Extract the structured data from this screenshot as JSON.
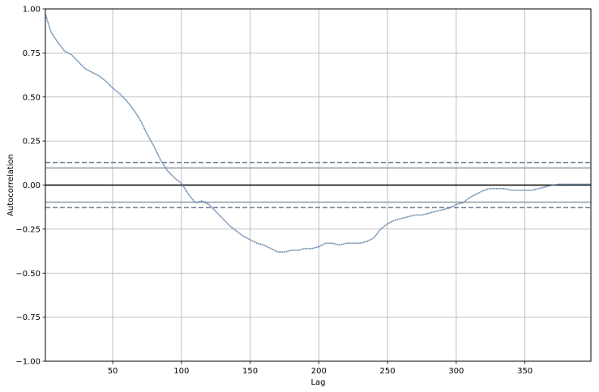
{
  "chart_data": {
    "type": "line",
    "xlabel": "Lag",
    "ylabel": "Autocorrelation",
    "xlim": [
      1,
      398
    ],
    "ylim": [
      -1.0,
      1.0
    ],
    "x_ticks": [
      50,
      100,
      150,
      200,
      250,
      300,
      350
    ],
    "x_tick_labels": [
      "50",
      "100",
      "150",
      "200",
      "250",
      "300",
      "350"
    ],
    "y_ticks": [
      1.0,
      0.75,
      0.5,
      0.25,
      0.0,
      -0.25,
      -0.5,
      -0.75,
      -1.0
    ],
    "y_tick_labels": [
      "1.00",
      "0.75",
      "0.50",
      "0.25",
      "0.00",
      "−0.25",
      "−0.50",
      "−0.75",
      "−1.00"
    ],
    "grid": true,
    "legend": "none",
    "reference_lines": [
      {
        "y": 0.128,
        "style": "dashed",
        "color": "#6e7f98"
      },
      {
        "y": 0.097,
        "style": "solid",
        "color": "#8c9aa8"
      },
      {
        "y": 0.0,
        "style": "solid",
        "color": "#000000"
      },
      {
        "y": -0.097,
        "style": "solid",
        "color": "#8c9aa8"
      },
      {
        "y": -0.128,
        "style": "dashed",
        "color": "#6e7f98"
      }
    ],
    "series": [
      {
        "color": "#5b7fa6",
        "x": [
          1,
          5,
          10,
          15,
          20,
          25,
          30,
          35,
          40,
          45,
          50,
          55,
          60,
          65,
          70,
          75,
          80,
          85,
          90,
          95,
          100,
          105,
          110,
          115,
          120,
          125,
          130,
          135,
          140,
          145,
          150,
          155,
          160,
          165,
          170,
          175,
          180,
          185,
          190,
          195,
          200,
          205,
          210,
          215,
          220,
          225,
          230,
          235,
          240,
          245,
          250,
          255,
          260,
          265,
          270,
          275,
          280,
          285,
          290,
          295,
          300,
          305,
          310,
          315,
          320,
          325,
          330,
          335,
          340,
          345,
          350,
          355,
          360,
          365,
          370,
          375,
          380,
          385,
          390,
          395,
          398
        ],
        "y": [
          0.97,
          0.87,
          0.81,
          0.76,
          0.74,
          0.7,
          0.66,
          0.64,
          0.62,
          0.59,
          0.55,
          0.52,
          0.48,
          0.43,
          0.37,
          0.29,
          0.22,
          0.14,
          0.08,
          0.04,
          0.01,
          -0.05,
          -0.1,
          -0.09,
          -0.11,
          -0.15,
          -0.19,
          -0.23,
          -0.26,
          -0.29,
          -0.31,
          -0.33,
          -0.34,
          -0.36,
          -0.38,
          -0.38,
          -0.37,
          -0.37,
          -0.36,
          -0.36,
          -0.35,
          -0.33,
          -0.33,
          -0.34,
          -0.33,
          -0.33,
          -0.33,
          -0.32,
          -0.3,
          -0.25,
          -0.22,
          -0.2,
          -0.19,
          -0.18,
          -0.17,
          -0.17,
          -0.16,
          -0.15,
          -0.14,
          -0.13,
          -0.11,
          -0.1,
          -0.07,
          -0.05,
          -0.03,
          -0.02,
          -0.02,
          -0.02,
          -0.03,
          -0.03,
          -0.03,
          -0.03,
          -0.02,
          -0.01,
          0.0,
          0.005,
          0.005,
          0.005,
          0.005,
          0.005,
          0.005
        ]
      }
    ]
  }
}
